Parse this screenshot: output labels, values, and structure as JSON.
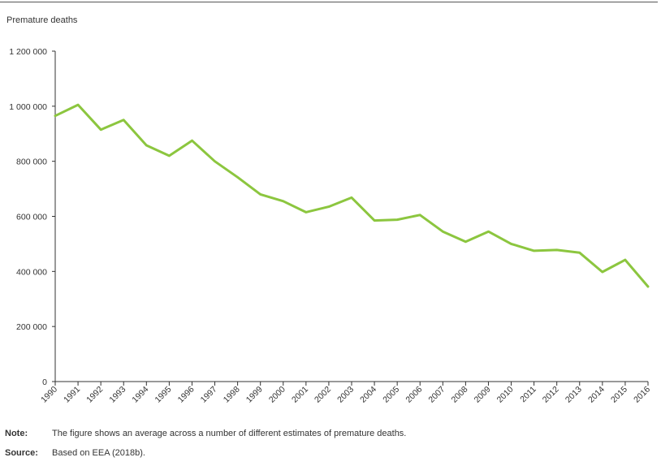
{
  "chart_data": {
    "type": "line",
    "title": "",
    "ylabel": "Premature deaths",
    "xlabel": "",
    "ylim": [
      0,
      1200000
    ],
    "y_ticks": [
      0,
      200000,
      400000,
      600000,
      800000,
      1000000,
      1200000
    ],
    "y_tick_labels": [
      "0",
      "200 000",
      "400 000",
      "600 000",
      "800 000",
      "1 000 000",
      "1 200 000"
    ],
    "categories": [
      "1990",
      "1991",
      "1992",
      "1993",
      "1994",
      "1995",
      "1996",
      "1997",
      "1998",
      "1999",
      "2000",
      "2001",
      "2002",
      "2003",
      "2004",
      "2005",
      "2006",
      "2007",
      "2008",
      "2009",
      "2010",
      "2011",
      "2012",
      "2013",
      "2014",
      "2015",
      "2016"
    ],
    "series": [
      {
        "values": [
          965000,
          1005000,
          915000,
          950000,
          858000,
          820000,
          875000,
          800000,
          742000,
          680000,
          655000,
          615000,
          635000,
          668000,
          585000,
          588000,
          605000,
          545000,
          508000,
          545000,
          500000,
          475000,
          478000,
          468000,
          398000,
          442000,
          345000
        ]
      }
    ],
    "line_color": "#8cc63f",
    "grid": false
  },
  "footer": {
    "note_label": "Note:",
    "note_text": "The figure shows an average across a number of different estimates of premature deaths.",
    "source_label": "Source:",
    "source_text": "Based on EEA (2018b)."
  }
}
